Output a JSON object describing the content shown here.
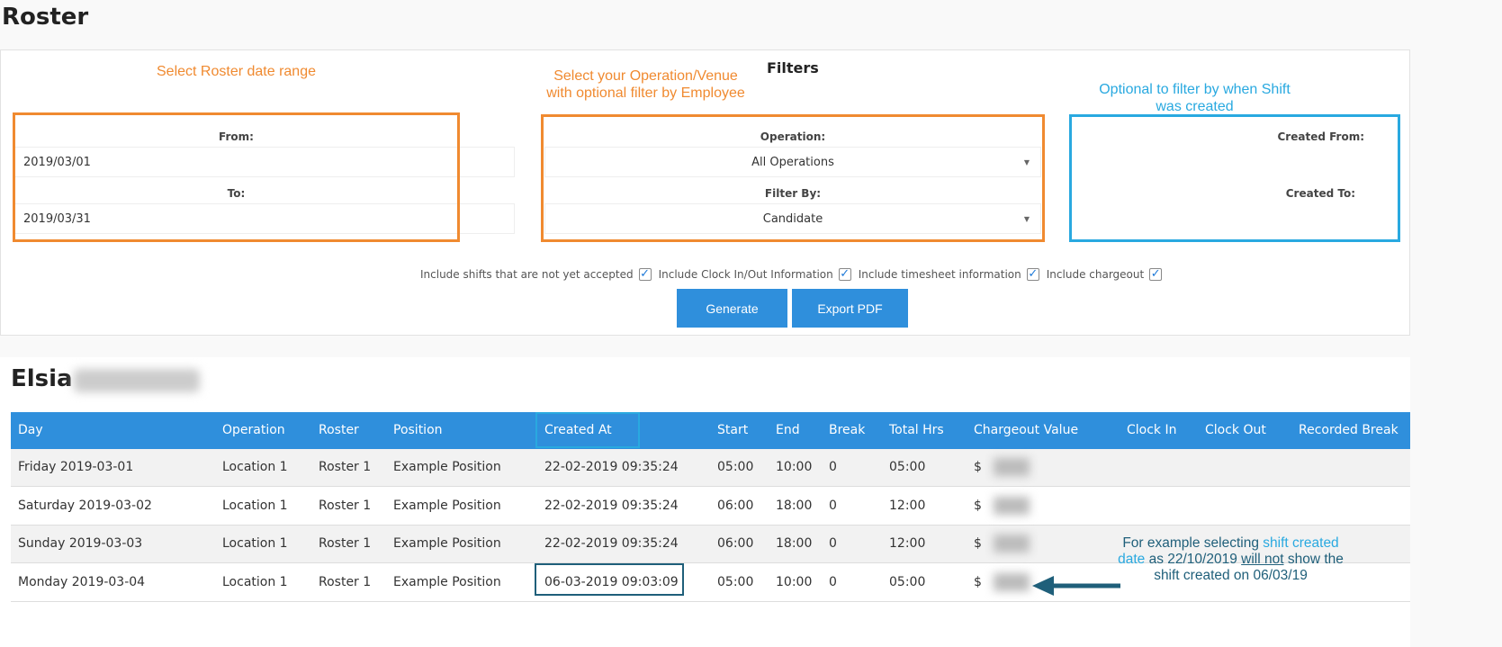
{
  "title": "Roster",
  "filters": {
    "heading": "Filters",
    "from_label": "From:",
    "from_value": "2019/03/01",
    "to_label": "To:",
    "to_value": "2019/03/31",
    "operation_label": "Operation:",
    "operation_value": "All Operations",
    "filter_by_label": "Filter By:",
    "filter_by_value": "Candidate",
    "created_from_label": "Created From:",
    "created_from_value": "",
    "created_to_label": "Created To:",
    "created_to_value": "",
    "checkboxes": [
      {
        "label": "Include shifts that are not yet accepted",
        "checked": true
      },
      {
        "label": "Include Clock In/Out Information",
        "checked": true
      },
      {
        "label": "Include timesheet information",
        "checked": true
      },
      {
        "label": "Include chargeout",
        "checked": true
      }
    ],
    "generate_label": "Generate",
    "export_label": "Export PDF"
  },
  "annotations": {
    "date_range": "Select Roster date range",
    "operation_1": "Select your Operation/Venue",
    "operation_2": "with optional filter by Employee",
    "created_1": "Optional to filter by when Shift",
    "created_2": "was created",
    "example_a": "For example selecting ",
    "example_b": "shift created",
    "example_c": "date",
    "example_d": " as 22/10/2019 ",
    "example_e": "will not",
    "example_f": " show the",
    "example_g": "shift created on 06/03/19",
    "colors": {
      "orange": "#f08a30",
      "blue": "#29a9e0",
      "dark": "#1f5f7a"
    }
  },
  "employee": {
    "first_name": "Elsia"
  },
  "table": {
    "headers": [
      "Day",
      "Operation",
      "Roster",
      "Position",
      "Created At",
      "Start",
      "End",
      "Break",
      "Total Hrs",
      "Chargeout Value",
      "Clock In",
      "Clock Out",
      "Recorded Break"
    ],
    "rows": [
      [
        "Friday 2019-03-01",
        "Location 1",
        "Roster 1",
        "Example Position",
        "22-02-2019 09:35:24",
        "05:00",
        "10:00",
        "0",
        "05:00",
        "$"
      ],
      [
        "Saturday 2019-03-02",
        "Location 1",
        "Roster 1",
        "Example Position",
        "22-02-2019 09:35:24",
        "06:00",
        "18:00",
        "0",
        "12:00",
        "$"
      ],
      [
        "Sunday 2019-03-03",
        "Location 1",
        "Roster 1",
        "Example Position",
        "22-02-2019 09:35:24",
        "06:00",
        "18:00",
        "0",
        "12:00",
        "$"
      ],
      [
        "Monday 2019-03-04",
        "Location 1",
        "Roster 1",
        "Example Position",
        "06-03-2019 09:03:09",
        "05:00",
        "10:00",
        "0",
        "05:00",
        "$"
      ]
    ]
  }
}
